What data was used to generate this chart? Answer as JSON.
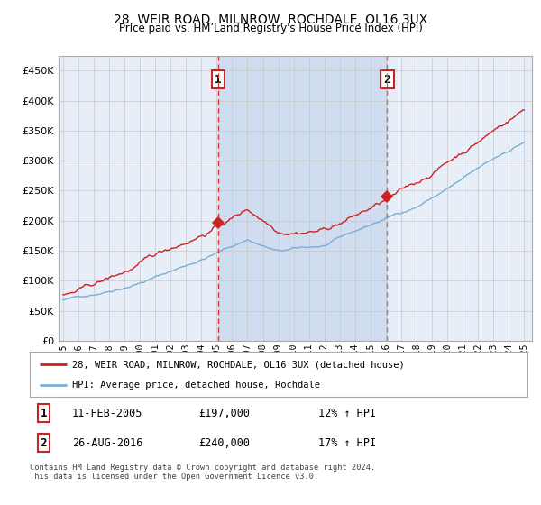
{
  "title": "28, WEIR ROAD, MILNROW, ROCHDALE, OL16 3UX",
  "subtitle": "Price paid vs. HM Land Registry's House Price Index (HPI)",
  "title_fontsize": 10,
  "subtitle_fontsize": 8.5,
  "background_color": "#ffffff",
  "plot_bg_color": "#e8eef8",
  "grid_color": "#c8c8c8",
  "sale1_date_idx": 121,
  "sale1_price": 197000,
  "sale1_label": "1",
  "sale2_date_idx": 253,
  "sale2_price": 240000,
  "sale2_label": "2",
  "legend_line1": "28, WEIR ROAD, MILNROW, ROCHDALE, OL16 3UX (detached house)",
  "legend_line2": "HPI: Average price, detached house, Rochdale",
  "table_row1": [
    "1",
    "11-FEB-2005",
    "£197,000",
    "12% ↑ HPI"
  ],
  "table_row2": [
    "2",
    "26-AUG-2016",
    "£240,000",
    "17% ↑ HPI"
  ],
  "footer": "Contains HM Land Registry data © Crown copyright and database right 2024.\nThis data is licensed under the Open Government Licence v3.0.",
  "hpi_color": "#7aadd4",
  "price_color": "#cc2222",
  "marker_color": "#cc2222",
  "sale1_vline_color": "#dd3333",
  "sale2_vline_color": "#888888",
  "shade_color": "#ccd9ee",
  "ylim": [
    0,
    475000
  ],
  "yticks": [
    0,
    50000,
    100000,
    150000,
    200000,
    250000,
    300000,
    350000,
    400000,
    450000
  ],
  "start_year": 1995,
  "end_year": 2025,
  "num_months": 361
}
